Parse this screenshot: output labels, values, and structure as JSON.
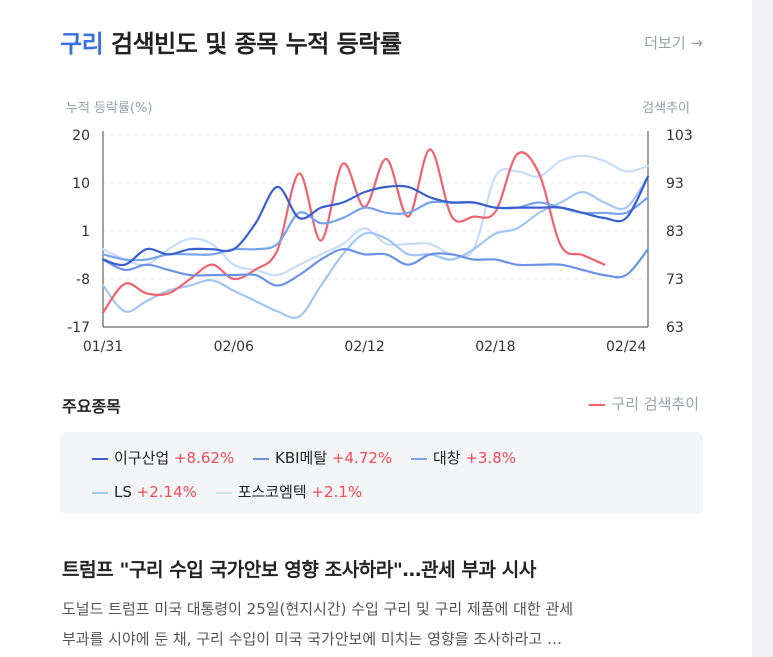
{
  "header": {
    "title_keyword": "구리",
    "title_rest": " 검색빈도 및 종목 누적 등락률",
    "more_label": "더보기 →"
  },
  "chart_data": {
    "type": "line",
    "left_axis_label": "누적 등락률(%)",
    "right_axis_label": "검색추이",
    "left_ticks": [
      "20",
      "10",
      "1",
      "-8",
      "-17"
    ],
    "right_ticks": [
      "103",
      "93",
      "83",
      "73",
      "63"
    ],
    "left_range": [
      -17,
      20
    ],
    "right_range": [
      63,
      103
    ],
    "x_tick_labels": [
      "01/31",
      "02/06",
      "02/12",
      "02/18",
      "02/24"
    ],
    "x_tick_index": [
      0,
      6,
      12,
      18,
      24
    ],
    "grid": "horizontal-dashed",
    "series": [
      {
        "name": "이구산업",
        "color": "#3a5fcf",
        "axis": "left",
        "values": [
          -4,
          -5,
          -2,
          -3,
          -2,
          -2,
          -2,
          3,
          10,
          4,
          6,
          7,
          9,
          10,
          10,
          8,
          7,
          7,
          6,
          6,
          6,
          6,
          5,
          4,
          4,
          12
        ]
      },
      {
        "name": "KBI메탈",
        "color": "#6c93e8",
        "axis": "left",
        "values": [
          -4,
          -6,
          -5,
          -6,
          -7,
          -7,
          -7,
          -7,
          -9,
          -7,
          -4,
          -2,
          -3,
          -3,
          -5,
          -3,
          -3,
          -4,
          -4,
          -5,
          -5,
          -5,
          -6,
          -7,
          -7,
          -2
        ]
      },
      {
        "name": "대창",
        "color": "#78a3ef",
        "axis": "left",
        "values": [
          -3,
          -4,
          -4,
          -3,
          -3,
          -3,
          -2,
          -2,
          -1,
          5,
          3,
          4,
          6,
          5,
          5,
          7,
          7,
          7,
          6,
          6,
          7,
          6,
          5,
          5,
          5,
          8
        ]
      },
      {
        "name": "LS",
        "color": "#a2c6f5",
        "axis": "left",
        "values": [
          -9,
          -14,
          -12,
          -10,
          -9,
          -8,
          -10,
          -12,
          -14,
          -15,
          -9,
          -3,
          1,
          0,
          -3,
          -3,
          -4,
          -2,
          1,
          2,
          5,
          7,
          9,
          7,
          6,
          12
        ]
      },
      {
        "name": "포스코엠텍",
        "color": "#c7ddf8",
        "axis": "left",
        "values": [
          -2,
          -4,
          -5,
          -2,
          0,
          -1,
          -5,
          -6,
          -7,
          -5,
          -3,
          -1,
          2,
          -1,
          -1,
          -1,
          -3,
          -2,
          12,
          13,
          12,
          15,
          16,
          15,
          13,
          14
        ]
      },
      {
        "name": "구리 검색추이",
        "color": "#f0626e",
        "axis": "right",
        "values": [
          66,
          72,
          70,
          70,
          73,
          76,
          73,
          75,
          79,
          95,
          81,
          97,
          88,
          98,
          86,
          100,
          86,
          86,
          87,
          99,
          95,
          80,
          78,
          76
        ]
      }
    ]
  },
  "section": {
    "title": "주요종목",
    "search_legend": "구리 검색추이"
  },
  "legend": {
    "items": [
      {
        "name": "이구산업",
        "pct": "+8.62%",
        "color": "#3a5fcf"
      },
      {
        "name": "KBI메탈",
        "pct": "+4.72%",
        "color": "#6c93e8"
      },
      {
        "name": "대창",
        "pct": "+3.8%",
        "color": "#78a3ef"
      },
      {
        "name": "LS",
        "pct": "+2.14%",
        "color": "#a2c6f5"
      },
      {
        "name": "포스코엠텍",
        "pct": "+2.1%",
        "color": "#c7ddf8"
      }
    ]
  },
  "news": {
    "title": "트럼프 \"구리 수입 국가안보 영향 조사하라\"…관세 부과 시사",
    "body_line1": "도널드 트럼프 미국 대통령이 25일(현지시간) 수입 구리 및 구리 제품에 대한 관세",
    "body_line2": "부과를 시야에 둔 채, 구리 수입이 미국 국가안보에 미치는 영향을 조사하라고 …"
  }
}
